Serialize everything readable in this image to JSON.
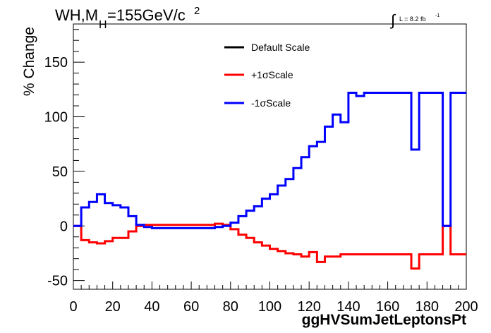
{
  "chart_data": {
    "type": "line",
    "title": "WH,M",
    "title_sub": "H",
    "title_rest": "=155GeV/c",
    "title_sup": "2",
    "lumi_label": "L = 8.2 fb",
    "lumi_sup": "-1",
    "xlabel": "ggHVSumJetLeptonsPt",
    "ylabel": "% Change",
    "xlim": [
      0,
      200
    ],
    "ylim": [
      -58,
      185
    ],
    "x_ticks": [
      0,
      20,
      40,
      60,
      80,
      100,
      120,
      140,
      160,
      180,
      200
    ],
    "y_ticks": [
      -50,
      0,
      50,
      100,
      150
    ],
    "grid": false,
    "legend_position": "top-center",
    "bin_edges": [
      0,
      4,
      8,
      12,
      16,
      20,
      24,
      28,
      32,
      36,
      40,
      44,
      48,
      52,
      56,
      60,
      64,
      68,
      72,
      76,
      80,
      84,
      88,
      92,
      96,
      100,
      104,
      108,
      112,
      116,
      120,
      124,
      128,
      132,
      136,
      140,
      144,
      148,
      152,
      156,
      160,
      164,
      168,
      172,
      176,
      180,
      184,
      188,
      192,
      196,
      200
    ],
    "series": [
      {
        "name": "Default Scale",
        "color": "#000000",
        "values": []
      },
      {
        "name": "+1σScale",
        "color": "#ff0000",
        "values": [
          0,
          -13,
          -15,
          -16,
          -14,
          -11,
          -11,
          -5,
          0,
          1,
          1,
          1,
          1,
          1,
          1,
          1,
          1,
          1,
          2,
          1,
          -3,
          -8,
          -11,
          -15,
          -18,
          -21,
          -23,
          -25,
          -26,
          -28,
          -24,
          -33,
          -28,
          -28,
          -26,
          -26,
          -26,
          -26,
          -26,
          -26,
          -26,
          -26,
          -26,
          -39,
          -26,
          -26,
          -26,
          0,
          -26,
          -26
        ]
      },
      {
        "name": "-1σScale",
        "color": "#0000ff",
        "values": [
          0,
          17,
          22,
          29,
          21,
          19,
          17,
          9,
          1,
          -1,
          -2,
          -2,
          -2,
          -2,
          -2,
          -2,
          -2,
          -2,
          -1,
          0,
          3,
          9,
          14,
          18,
          25,
          29,
          37,
          43,
          53,
          63,
          73,
          77,
          91,
          102,
          95,
          122,
          119,
          122,
          122,
          122,
          122,
          122,
          122,
          70,
          122,
          122,
          122,
          0,
          122,
          122
        ]
      }
    ]
  }
}
